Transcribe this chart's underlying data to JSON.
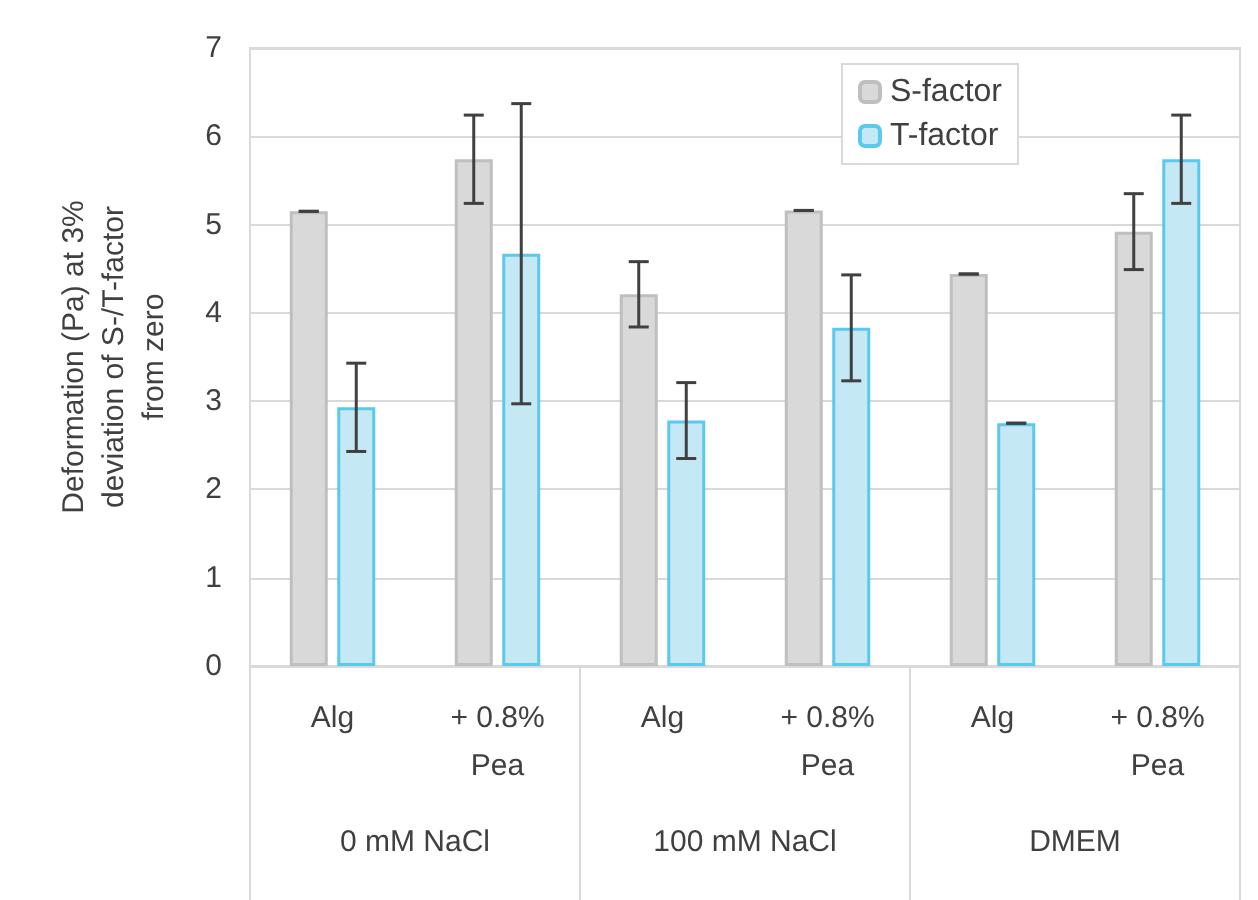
{
  "chart_data": {
    "type": "bar",
    "ylabel": "Deformation (Pa) at 3%\ndeviation of S-/T-factor\nfrom zero",
    "categories": [
      "Alg",
      "+ 0.8%\nPea",
      "Alg",
      "+ 0.8%\nPea",
      "Alg",
      "+ 0.8%\nPea"
    ],
    "series": [
      {
        "name": "S-factor",
        "color": "#d9d9d9",
        "values": [
          5.15,
          5.74,
          4.21,
          5.16,
          4.44,
          4.92
        ],
        "errors": [
          0,
          0.5,
          0.37,
          0,
          0,
          0.43
        ]
      },
      {
        "name": "T-factor",
        "color": "#c5e8f5",
        "values": [
          2.93,
          4.67,
          2.78,
          3.83,
          2.75,
          5.74
        ],
        "errors": [
          0.5,
          1.7,
          0.43,
          0.6,
          0,
          0.5
        ]
      }
    ],
    "annotations": [
      "0 mM NaCl",
      "100 mM NaCl",
      "DMEM"
    ],
    "ylim": [
      0,
      7
    ],
    "yticks": [
      0,
      1,
      2,
      3,
      4,
      5,
      6,
      7
    ],
    "grid": "y",
    "legend": "top right"
  }
}
